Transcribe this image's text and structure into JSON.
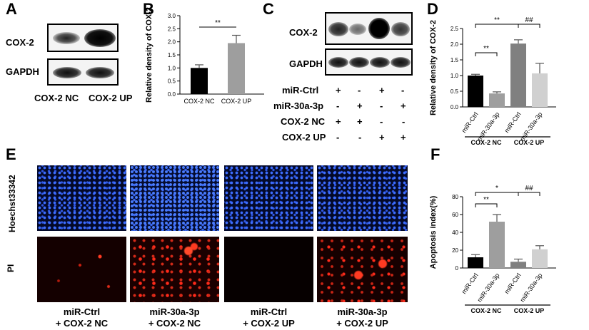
{
  "panels": {
    "A": {
      "label": "A",
      "rows": [
        "COX-2",
        "GAPDH"
      ],
      "lanes": [
        "COX-2 NC",
        "COX-2 UP"
      ]
    },
    "C": {
      "label": "C",
      "rows": [
        "COX-2",
        "GAPDH"
      ],
      "conditions": [
        {
          "name": "miR-Ctrl",
          "marks": [
            "+",
            "-",
            "+",
            "-"
          ]
        },
        {
          "name": "miR-30a-3p",
          "marks": [
            "-",
            "+",
            "-",
            "+"
          ]
        },
        {
          "name": "COX-2 NC",
          "marks": [
            "+",
            "+",
            "-",
            "-"
          ]
        },
        {
          "name": "COX-2 UP",
          "marks": [
            "-",
            "-",
            "+",
            "+"
          ]
        }
      ]
    },
    "E": {
      "label": "E",
      "row_labels": [
        "Hoechst33342",
        "PI"
      ],
      "captions": [
        [
          "miR-Ctrl",
          "+ COX-2 NC"
        ],
        [
          "miR-30a-3p",
          "+ COX-2 NC"
        ],
        [
          "miR-Ctrl",
          "+ COX-2 UP"
        ],
        [
          "miR-30a-3p",
          "+ COX-2 UP"
        ]
      ]
    }
  },
  "colors": {
    "black": "#000000",
    "dark_gray": "#808080",
    "mid_gray": "#9e9e9e",
    "light_gray": "#d0d0d0",
    "hoechst": "#2a5cff",
    "pi": "#ff2a1a"
  },
  "chart_data": [
    {
      "panel": "B",
      "type": "bar",
      "ylabel": "Relative density of COX-2",
      "categories": [
        "COX-2 NC",
        "COX-2 UP"
      ],
      "values": [
        1.0,
        1.95
      ],
      "errors": [
        0.12,
        0.3
      ],
      "ylim": [
        0,
        3.0
      ],
      "yticks": [
        "0.0",
        "0.5",
        "1.0",
        "1.5",
        "2.0",
        "2.5",
        "3.0"
      ],
      "colors": [
        "#000000",
        "#9e9e9e"
      ],
      "significance": [
        "**"
      ]
    },
    {
      "panel": "D",
      "type": "bar",
      "ylabel": "Relative density of COX-2",
      "categories": [
        "miR-Ctrl",
        "miR-30a-3p",
        "miR-Ctrl",
        "miR-30a-3p"
      ],
      "groups": [
        "COX-2 NC",
        "COX-2 UP"
      ],
      "values": [
        1.0,
        0.43,
        2.02,
        1.07
      ],
      "errors": [
        0.04,
        0.05,
        0.12,
        0.32
      ],
      "ylim": [
        0,
        2.5
      ],
      "yticks": [
        "0.0",
        "0.5",
        "1.0",
        "1.5",
        "2.0",
        "2.5"
      ],
      "colors": [
        "#000000",
        "#9e9e9e",
        "#808080",
        "#d0d0d0"
      ],
      "significance": [
        "**",
        "**",
        "##"
      ]
    },
    {
      "panel": "F",
      "type": "bar",
      "ylabel": "Apoptosis index(%)",
      "categories": [
        "miR-Ctrl",
        "miR-30a-3p",
        "miR-Ctrl",
        "miR-30a-3p"
      ],
      "groups": [
        "COX-2 NC",
        "COX-2 UP"
      ],
      "values": [
        12,
        52,
        7,
        21
      ],
      "errors": [
        3,
        8,
        3,
        4
      ],
      "ylim": [
        0,
        80
      ],
      "yticks": [
        "0",
        "20",
        "40",
        "60",
        "80"
      ],
      "colors": [
        "#000000",
        "#9e9e9e",
        "#808080",
        "#d0d0d0"
      ],
      "significance": [
        "**",
        "*",
        "##"
      ]
    }
  ]
}
